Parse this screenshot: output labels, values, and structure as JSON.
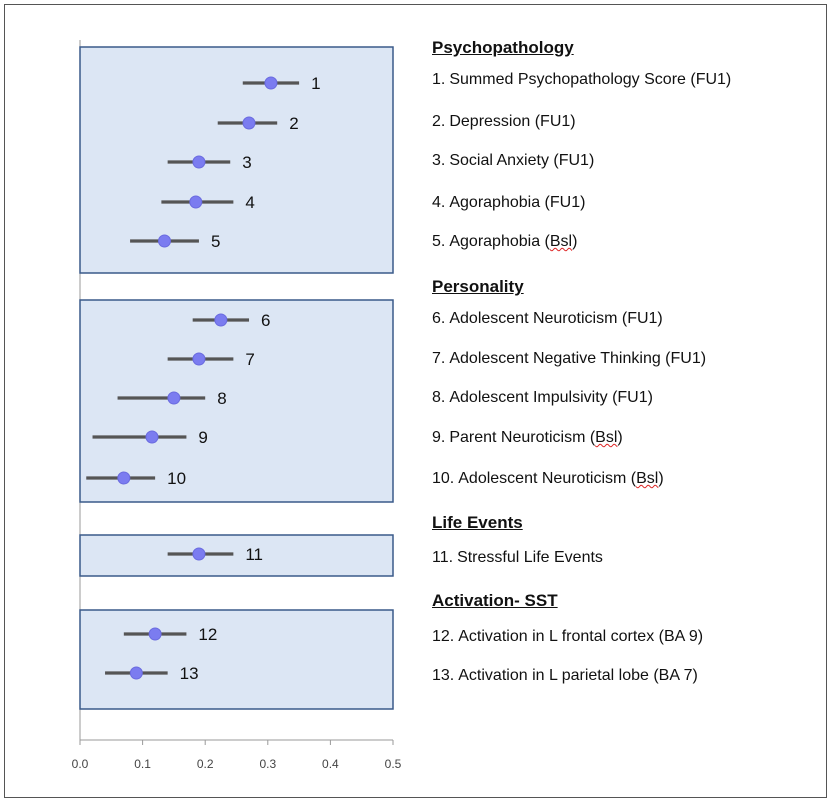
{
  "chart_data": {
    "type": "forest",
    "xlim": [
      0.0,
      0.5
    ],
    "xticks": [
      "0.0",
      "0.1",
      "0.2",
      "0.3",
      "0.4",
      "0.5"
    ],
    "grid": false,
    "points": [
      {
        "label": "1",
        "value": 0.305,
        "low": 0.26,
        "high": 0.35
      },
      {
        "label": "2",
        "value": 0.27,
        "low": 0.22,
        "high": 0.315
      },
      {
        "label": "3",
        "value": 0.19,
        "low": 0.14,
        "high": 0.24
      },
      {
        "label": "4",
        "value": 0.185,
        "low": 0.13,
        "high": 0.245
      },
      {
        "label": "5",
        "value": 0.135,
        "low": 0.08,
        "high": 0.19
      },
      {
        "label": "6",
        "value": 0.225,
        "low": 0.18,
        "high": 0.27
      },
      {
        "label": "7",
        "value": 0.19,
        "low": 0.14,
        "high": 0.245
      },
      {
        "label": "8",
        "value": 0.15,
        "low": 0.06,
        "high": 0.2
      },
      {
        "label": "9",
        "value": 0.115,
        "low": 0.02,
        "high": 0.17
      },
      {
        "label": "10",
        "value": 0.07,
        "low": 0.01,
        "high": 0.12
      },
      {
        "label": "11",
        "value": 0.19,
        "low": 0.14,
        "high": 0.245
      },
      {
        "label": "12",
        "value": 0.12,
        "low": 0.07,
        "high": 0.17
      },
      {
        "label": "13",
        "value": 0.09,
        "low": 0.04,
        "high": 0.14
      }
    ],
    "groups": [
      {
        "title": "Psychopathology",
        "items": [
          {
            "num": "1.",
            "text": "Summed Psychopathology Score (FU1)"
          },
          {
            "num": "2.",
            "text": "Depression (FU1)"
          },
          {
            "num": "3.",
            "text": "Social Anxiety (FU1)"
          },
          {
            "num": "4.",
            "text": "Agoraphobia (FU1)"
          },
          {
            "num": "5.",
            "text": "Agoraphobia (",
            "mark": "Bsl",
            "tail": ")"
          }
        ]
      },
      {
        "title": "Personality",
        "items": [
          {
            "num": "6.",
            "text": "Adolescent Neuroticism (FU1)"
          },
          {
            "num": "7.",
            "text": "Adolescent Negative Thinking (FU1)"
          },
          {
            "num": "8.",
            "text": "Adolescent Impulsivity (FU1)"
          },
          {
            "num": "9.",
            "text": "Parent Neuroticism (",
            "mark": "Bsl",
            "tail": ")"
          },
          {
            "num": "10.",
            "text": "Adolescent Neuroticism (",
            "mark": "Bsl",
            "tail": ")"
          }
        ]
      },
      {
        "title": "Life Events",
        "items": [
          {
            "num": "11.",
            "text": "Stressful Life Events"
          }
        ]
      },
      {
        "title": "Activation- SST",
        "items": [
          {
            "num": "12.",
            "text": "Activation in L frontal cortex (BA 9)"
          },
          {
            "num": "13.",
            "text": "Activation in L parietal lobe (BA 7)"
          }
        ]
      }
    ],
    "colors": {
      "panel_fill": "#dce6f4",
      "panel_border": "#3a5a8a",
      "point": "#7b7cf0",
      "whisker": "#555555"
    }
  }
}
